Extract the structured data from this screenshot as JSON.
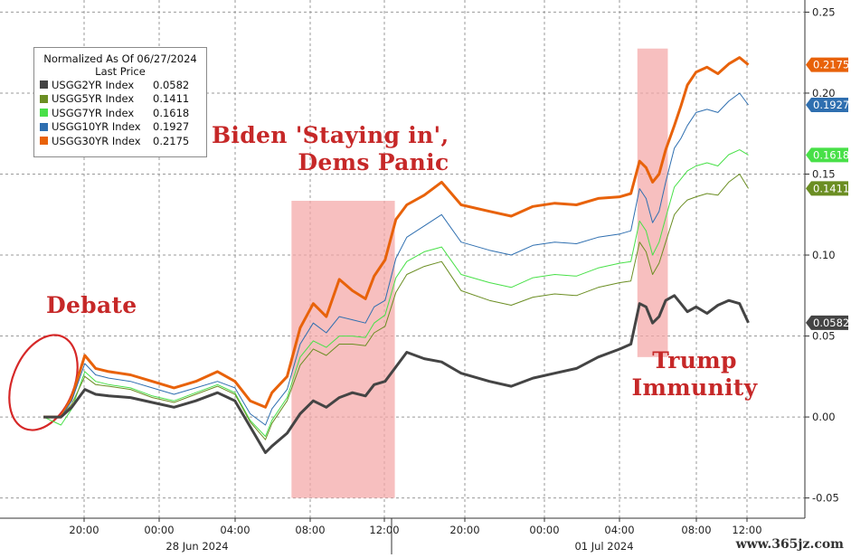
{
  "chart_data": {
    "type": "line",
    "legend": {
      "title": [
        "Normalized As Of 06/27/2024",
        "Last Price"
      ],
      "entries": [
        {
          "name": "USGG2YR Index",
          "value": "0.0582",
          "color": "#444444"
        },
        {
          "name": "USGG5YR Index",
          "value": "0.1411",
          "color": "#6b8e23"
        },
        {
          "name": "USGG7YR Index",
          "value": "0.1618",
          "color": "#48e048"
        },
        {
          "name": "USGG10YR Index",
          "value": "0.1927",
          "color": "#2f6fb0"
        },
        {
          "name": "USGG30YR Index",
          "value": "0.2175",
          "color": "#e8620a"
        }
      ]
    },
    "y_axis": {
      "ticks": [
        "0.25",
        "0.20",
        "0.15",
        "0.10",
        "0.05",
        "0.00",
        "-0.05"
      ],
      "tick_values": [
        0.25,
        0.2,
        0.15,
        0.1,
        0.05,
        0.0,
        -0.05
      ],
      "ylim": [
        -0.0625,
        0.2575
      ],
      "side": "right"
    },
    "x_axis": {
      "ticks": [
        "20:00",
        "00:00",
        "04:00",
        "08:00",
        "12:00",
        "20:00",
        "00:00",
        "04:00",
        "08:00",
        "12:00"
      ],
      "dates": [
        {
          "label": "28 Jun 2024",
          "anchor_tick": 3
        },
        {
          "label": "01 Jul 2024",
          "anchor_tick": 7
        }
      ]
    },
    "value_tags": [
      {
        "text": "0.2175",
        "value": 0.2175,
        "color": "#e8620a"
      },
      {
        "text": "0.1927",
        "value": 0.1927,
        "color": "#2f6fb0"
      },
      {
        "text": "0.1618",
        "value": 0.1618,
        "color": "#48e048"
      },
      {
        "text": "0.1411",
        "value": 0.1411,
        "color": "#6b8e23"
      },
      {
        "text": "0.0582",
        "value": 0.0582,
        "color": "#444444"
      }
    ],
    "series": [
      {
        "name": "USGG30YR Index",
        "color": "#e8620a",
        "points": [
          [
            0,
            0
          ],
          [
            0.8,
            0.0
          ],
          [
            1.3,
            0.012
          ],
          [
            1.9,
            0.038
          ],
          [
            2.4,
            0.03
          ],
          [
            3,
            0.028
          ],
          [
            4,
            0.026
          ],
          [
            5,
            0.022
          ],
          [
            6,
            0.018
          ],
          [
            7,
            0.022
          ],
          [
            8,
            0.028
          ],
          [
            8.8,
            0.022
          ],
          [
            9.5,
            0.01
          ],
          [
            10.2,
            0.006
          ],
          [
            10.5,
            0.015
          ],
          [
            11.2,
            0.025
          ],
          [
            11.8,
            0.055
          ],
          [
            12.4,
            0.07
          ],
          [
            13,
            0.062
          ],
          [
            13.6,
            0.085
          ],
          [
            14.2,
            0.078
          ],
          [
            14.8,
            0.073
          ],
          [
            15.2,
            0.087
          ],
          [
            15.7,
            0.097
          ],
          [
            16.2,
            0.122
          ],
          [
            16.7,
            0.131
          ],
          [
            17.5,
            0.137
          ],
          [
            18.3,
            0.145
          ],
          [
            19.2,
            0.131
          ],
          [
            20.5,
            0.127
          ],
          [
            21.5,
            0.124
          ],
          [
            22.5,
            0.13
          ],
          [
            23.5,
            0.132
          ],
          [
            24.5,
            0.131
          ],
          [
            25.5,
            0.135
          ],
          [
            26.5,
            0.136
          ],
          [
            27,
            0.138
          ],
          [
            27.4,
            0.158
          ],
          [
            27.7,
            0.154
          ],
          [
            28,
            0.145
          ],
          [
            28.3,
            0.15
          ],
          [
            28.6,
            0.165
          ],
          [
            29,
            0.18
          ],
          [
            29.3,
            0.192
          ],
          [
            29.6,
            0.205
          ],
          [
            30,
            0.213
          ],
          [
            30.5,
            0.216
          ],
          [
            31,
            0.212
          ],
          [
            31.5,
            0.218
          ],
          [
            32,
            0.222
          ],
          [
            32.4,
            0.2175
          ]
        ]
      },
      {
        "name": "USGG10YR Index",
        "color": "#2f6fb0",
        "points": [
          [
            0,
            0
          ],
          [
            0.8,
            0.0
          ],
          [
            1.3,
            0.01
          ],
          [
            1.9,
            0.033
          ],
          [
            2.4,
            0.026
          ],
          [
            3,
            0.024
          ],
          [
            4,
            0.022
          ],
          [
            5,
            0.018
          ],
          [
            6,
            0.014
          ],
          [
            7,
            0.018
          ],
          [
            8,
            0.022
          ],
          [
            8.8,
            0.018
          ],
          [
            9.5,
            0.002
          ],
          [
            10.2,
            -0.005
          ],
          [
            10.5,
            0.005
          ],
          [
            11.2,
            0.017
          ],
          [
            11.8,
            0.045
          ],
          [
            12.4,
            0.058
          ],
          [
            13,
            0.052
          ],
          [
            13.6,
            0.062
          ],
          [
            14.2,
            0.06
          ],
          [
            14.8,
            0.058
          ],
          [
            15.2,
            0.068
          ],
          [
            15.7,
            0.072
          ],
          [
            16.2,
            0.098
          ],
          [
            16.7,
            0.111
          ],
          [
            17.5,
            0.118
          ],
          [
            18.3,
            0.125
          ],
          [
            19.2,
            0.108
          ],
          [
            20.5,
            0.103
          ],
          [
            21.5,
            0.1
          ],
          [
            22.5,
            0.106
          ],
          [
            23.5,
            0.108
          ],
          [
            24.5,
            0.107
          ],
          [
            25.5,
            0.111
          ],
          [
            26.5,
            0.113
          ],
          [
            27,
            0.115
          ],
          [
            27.4,
            0.141
          ],
          [
            27.7,
            0.135
          ],
          [
            28,
            0.12
          ],
          [
            28.3,
            0.127
          ],
          [
            28.6,
            0.145
          ],
          [
            29,
            0.166
          ],
          [
            29.3,
            0.172
          ],
          [
            29.6,
            0.18
          ],
          [
            30,
            0.188
          ],
          [
            30.5,
            0.19
          ],
          [
            31,
            0.188
          ],
          [
            31.5,
            0.195
          ],
          [
            32,
            0.2
          ],
          [
            32.4,
            0.1927
          ]
        ]
      },
      {
        "name": "USGG7YR Index",
        "color": "#48e048",
        "points": [
          [
            0,
            0
          ],
          [
            0.8,
            -0.005
          ],
          [
            1.3,
            0.005
          ],
          [
            1.9,
            0.028
          ],
          [
            2.4,
            0.022
          ],
          [
            3,
            0.02
          ],
          [
            4,
            0.018
          ],
          [
            5,
            0.013
          ],
          [
            6,
            0.01
          ],
          [
            7,
            0.015
          ],
          [
            8,
            0.02
          ],
          [
            8.8,
            0.015
          ],
          [
            9.5,
            -0.002
          ],
          [
            10.2,
            -0.012
          ],
          [
            10.5,
            -0.002
          ],
          [
            11.2,
            0.012
          ],
          [
            11.8,
            0.037
          ],
          [
            12.4,
            0.047
          ],
          [
            13,
            0.043
          ],
          [
            13.6,
            0.05
          ],
          [
            14.2,
            0.05
          ],
          [
            14.8,
            0.049
          ],
          [
            15.2,
            0.058
          ],
          [
            15.7,
            0.063
          ],
          [
            16.2,
            0.086
          ],
          [
            16.7,
            0.096
          ],
          [
            17.5,
            0.102
          ],
          [
            18.3,
            0.105
          ],
          [
            19.2,
            0.088
          ],
          [
            20.5,
            0.083
          ],
          [
            21.5,
            0.08
          ],
          [
            22.5,
            0.086
          ],
          [
            23.5,
            0.088
          ],
          [
            24.5,
            0.087
          ],
          [
            25.5,
            0.092
          ],
          [
            26.5,
            0.095
          ],
          [
            27,
            0.096
          ],
          [
            27.4,
            0.121
          ],
          [
            27.7,
            0.115
          ],
          [
            28,
            0.1
          ],
          [
            28.3,
            0.108
          ],
          [
            28.6,
            0.123
          ],
          [
            29,
            0.142
          ],
          [
            29.3,
            0.147
          ],
          [
            29.6,
            0.152
          ],
          [
            30,
            0.155
          ],
          [
            30.5,
            0.157
          ],
          [
            31,
            0.155
          ],
          [
            31.5,
            0.162
          ],
          [
            32,
            0.165
          ],
          [
            32.4,
            0.1618
          ]
        ]
      },
      {
        "name": "USGG5YR Index",
        "color": "#6b8e23",
        "points": [
          [
            0,
            0
          ],
          [
            0.8,
            0.0
          ],
          [
            1.3,
            0.008
          ],
          [
            1.9,
            0.025
          ],
          [
            2.4,
            0.02
          ],
          [
            3,
            0.019
          ],
          [
            4,
            0.017
          ],
          [
            5,
            0.012
          ],
          [
            6,
            0.009
          ],
          [
            7,
            0.014
          ],
          [
            8,
            0.019
          ],
          [
            8.8,
            0.014
          ],
          [
            9.5,
            -0.003
          ],
          [
            10.2,
            -0.014
          ],
          [
            10.5,
            -0.004
          ],
          [
            11.2,
            0.01
          ],
          [
            11.8,
            0.032
          ],
          [
            12.4,
            0.042
          ],
          [
            13,
            0.038
          ],
          [
            13.6,
            0.045
          ],
          [
            14.2,
            0.045
          ],
          [
            14.8,
            0.044
          ],
          [
            15.2,
            0.052
          ],
          [
            15.7,
            0.056
          ],
          [
            16.2,
            0.077
          ],
          [
            16.7,
            0.088
          ],
          [
            17.5,
            0.093
          ],
          [
            18.3,
            0.096
          ],
          [
            19.2,
            0.078
          ],
          [
            20.5,
            0.072
          ],
          [
            21.5,
            0.069
          ],
          [
            22.5,
            0.074
          ],
          [
            23.5,
            0.076
          ],
          [
            24.5,
            0.075
          ],
          [
            25.5,
            0.08
          ],
          [
            26.5,
            0.083
          ],
          [
            27,
            0.084
          ],
          [
            27.4,
            0.108
          ],
          [
            27.7,
            0.102
          ],
          [
            28,
            0.088
          ],
          [
            28.3,
            0.095
          ],
          [
            28.6,
            0.108
          ],
          [
            29,
            0.125
          ],
          [
            29.3,
            0.13
          ],
          [
            29.6,
            0.134
          ],
          [
            30,
            0.136
          ],
          [
            30.5,
            0.138
          ],
          [
            31,
            0.137
          ],
          [
            31.5,
            0.145
          ],
          [
            32,
            0.15
          ],
          [
            32.4,
            0.1411
          ]
        ]
      },
      {
        "name": "USGG2YR Index",
        "color": "#444444",
        "points": [
          [
            0,
            0
          ],
          [
            0.8,
            0.0
          ],
          [
            1.3,
            0.006
          ],
          [
            1.9,
            0.017
          ],
          [
            2.4,
            0.014
          ],
          [
            3,
            0.013
          ],
          [
            4,
            0.012
          ],
          [
            5,
            0.009
          ],
          [
            6,
            0.006
          ],
          [
            7,
            0.01
          ],
          [
            8,
            0.015
          ],
          [
            8.8,
            0.01
          ],
          [
            9.5,
            -0.006
          ],
          [
            10.2,
            -0.022
          ],
          [
            10.5,
            -0.018
          ],
          [
            11.2,
            -0.01
          ],
          [
            11.8,
            0.002
          ],
          [
            12.4,
            0.01
          ],
          [
            13,
            0.006
          ],
          [
            13.6,
            0.012
          ],
          [
            14.2,
            0.015
          ],
          [
            14.8,
            0.013
          ],
          [
            15.2,
            0.02
          ],
          [
            15.7,
            0.022
          ],
          [
            16.2,
            0.031
          ],
          [
            16.7,
            0.04
          ],
          [
            17.5,
            0.036
          ],
          [
            18.3,
            0.034
          ],
          [
            19.2,
            0.027
          ],
          [
            20.5,
            0.022
          ],
          [
            21.5,
            0.019
          ],
          [
            22.5,
            0.024
          ],
          [
            23.5,
            0.027
          ],
          [
            24.5,
            0.03
          ],
          [
            25.5,
            0.037
          ],
          [
            26.5,
            0.042
          ],
          [
            27,
            0.045
          ],
          [
            27.4,
            0.07
          ],
          [
            27.7,
            0.068
          ],
          [
            28,
            0.058
          ],
          [
            28.3,
            0.062
          ],
          [
            28.6,
            0.072
          ],
          [
            29,
            0.075
          ],
          [
            29.3,
            0.07
          ],
          [
            29.6,
            0.065
          ],
          [
            30,
            0.068
          ],
          [
            30.5,
            0.064
          ],
          [
            31,
            0.069
          ],
          [
            31.5,
            0.072
          ],
          [
            32,
            0.07
          ],
          [
            32.4,
            0.0582
          ]
        ]
      }
    ],
    "shaded_regions": [
      {
        "x0": 11.4,
        "x1": 16.15,
        "y0": -0.05,
        "y1": 0.1335
      },
      {
        "x0": 27.3,
        "x1": 28.7,
        "y0": 0.037,
        "y1": 0.2275
      }
    ],
    "annotations": [
      {
        "id": "debate",
        "lines": [
          "Debate"
        ]
      },
      {
        "id": "biden",
        "lines": [
          "Biden 'Staying in',",
          "Dems Panic"
        ]
      },
      {
        "id": "trump",
        "lines": [
          "Trump",
          "Immunity"
        ]
      }
    ],
    "grid": true
  },
  "watermark": "www.365jz.com"
}
